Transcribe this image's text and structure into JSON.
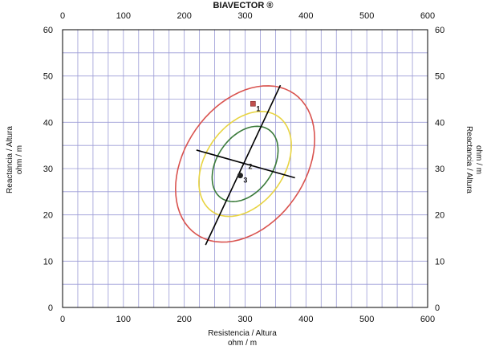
{
  "chart_data": {
    "type": "scatter",
    "title": "BIAVECTOR ®",
    "xlabel": "Resistencia / Altura",
    "xunit": "ohm / m",
    "ylabel": "Reactancia / Altura",
    "yunit": "ohm / m",
    "xlim": [
      0,
      600
    ],
    "ylim": [
      0,
      60
    ],
    "x_ticks": [
      "0",
      "100",
      "200",
      "300",
      "400",
      "500",
      "600"
    ],
    "y_ticks": [
      "0",
      "10",
      "20",
      "30",
      "40",
      "50",
      "60"
    ],
    "grid": true,
    "ellipses": [
      {
        "color": "#d9534f",
        "center": [
          300,
          31
        ],
        "semi_major_len": 18.5,
        "semi_minor_len": 13,
        "tilt_deg": 55
      },
      {
        "color": "#e8d442",
        "center": [
          300,
          31
        ],
        "semi_major_len": 12.5,
        "semi_minor_len": 8.5,
        "tilt_deg": 55
      },
      {
        "color": "#3a7a3a",
        "center": [
          300,
          31
        ],
        "semi_major_len": 9,
        "semi_minor_len": 6,
        "tilt_deg": 55
      }
    ],
    "axes_lines": [
      {
        "name": "major-axis",
        "from": [
          235,
          13.5
        ],
        "to": [
          358,
          48
        ]
      },
      {
        "name": "minor-axis",
        "from": [
          220,
          34
        ],
        "to": [
          382,
          28
        ]
      }
    ],
    "points": [
      {
        "label": "1",
        "x": 313,
        "y": 44,
        "marker": "square",
        "color": "#c0504d"
      },
      {
        "label": "2",
        "x": 300,
        "y": 31.5,
        "marker": "none",
        "color": "#222222"
      },
      {
        "label": "3",
        "x": 292,
        "y": 28.5,
        "marker": "circle",
        "color": "#222222"
      }
    ]
  }
}
